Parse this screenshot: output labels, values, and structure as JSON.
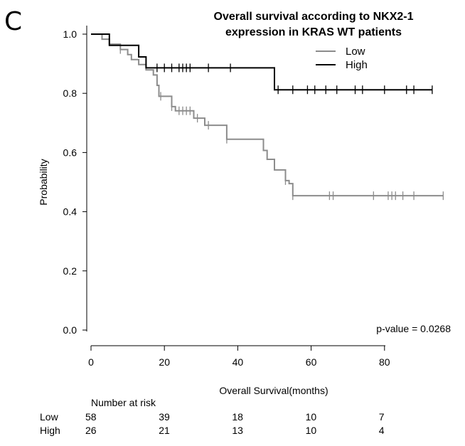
{
  "panel_label": "C",
  "chart_data": {
    "type": "line",
    "title_lines": [
      "Overall survival according to NKX2-1",
      "expression in KRAS WT patients"
    ],
    "xlabel": "Overall Survival(months)",
    "ylabel": "Probability",
    "xlim": [
      0,
      97
    ],
    "ylim": [
      0,
      1.0
    ],
    "x_ticks": [
      0,
      20,
      40,
      60,
      80
    ],
    "y_ticks": [
      0,
      0.2,
      0.4,
      0.6,
      0.8,
      1.0
    ],
    "y_tick_labels": [
      "0.0",
      "0.2",
      "0.4",
      "0.6",
      "0.8",
      "1.0"
    ],
    "legend_position": "top-right",
    "p_value_text": "p-value = 0.0268",
    "series": [
      {
        "name": "Low",
        "color": "#8c8c8c",
        "steps": [
          [
            0,
            1.0
          ],
          [
            3,
            0.983
          ],
          [
            5,
            0.966
          ],
          [
            8,
            0.948
          ],
          [
            10,
            0.931
          ],
          [
            11,
            0.914
          ],
          [
            13,
            0.897
          ],
          [
            15,
            0.879
          ],
          [
            17,
            0.862
          ],
          [
            18,
            0.827
          ],
          [
            18.5,
            0.79
          ],
          [
            22,
            0.755
          ],
          [
            23,
            0.741
          ],
          [
            28,
            0.716
          ],
          [
            31,
            0.692
          ],
          [
            37,
            0.645
          ],
          [
            47,
            0.607
          ],
          [
            48,
            0.577
          ],
          [
            50,
            0.541
          ],
          [
            53,
            0.505
          ],
          [
            54,
            0.495
          ],
          [
            55,
            0.454
          ],
          [
            96,
            0.454
          ]
        ],
        "censor_times": [
          8,
          19,
          22,
          24,
          25,
          26,
          27,
          29,
          32,
          37,
          53,
          55,
          65,
          66,
          77,
          81,
          82,
          83,
          85,
          88,
          96
        ]
      },
      {
        "name": "High",
        "color": "#000000",
        "steps": [
          [
            0,
            1.0
          ],
          [
            5,
            0.962
          ],
          [
            13,
            0.923
          ],
          [
            15,
            0.886
          ],
          [
            50,
            0.812
          ],
          [
            93,
            0.812
          ]
        ],
        "censor_times": [
          18,
          20,
          22,
          24,
          25,
          26,
          27,
          32,
          38,
          51,
          55,
          59,
          61,
          64,
          67,
          72,
          74,
          80,
          86,
          88,
          93
        ]
      }
    ],
    "risk_table": {
      "title": "Number at risk",
      "times": [
        0,
        20,
        40,
        60,
        80
      ],
      "rows": [
        {
          "label": "Low",
          "values": [
            "58",
            "39",
            "18",
            "10",
            "7"
          ]
        },
        {
          "label": "High",
          "values": [
            "26",
            "21",
            "13",
            "10",
            "4"
          ]
        }
      ]
    }
  }
}
